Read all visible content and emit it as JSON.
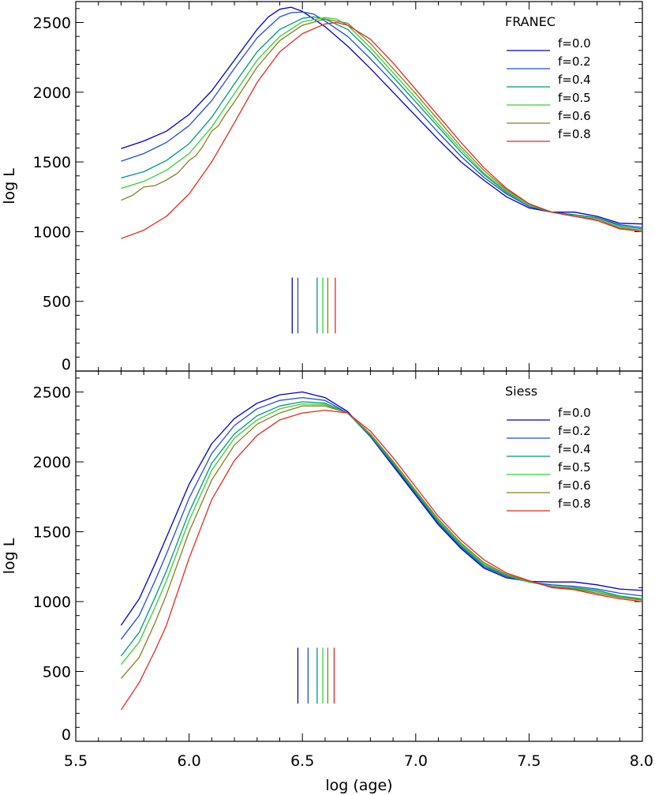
{
  "chart_data": [
    {
      "type": "line",
      "title": "FRANEC",
      "xlabel": "",
      "ylabel": "log L",
      "xlim": [
        5.5,
        8.0
      ],
      "ylim": [
        0,
        2650
      ],
      "xticks": [],
      "yticks": [
        "0",
        "500",
        "1000",
        "1500",
        "2000",
        "2500"
      ],
      "legend": {
        "placement": "top-right"
      },
      "series": [
        {
          "name": "f=0.0",
          "color": "#0000c8",
          "x": [
            5.7,
            5.8,
            5.9,
            6.0,
            6.1,
            6.2,
            6.3,
            6.35,
            6.4,
            6.45,
            6.5,
            6.6,
            6.7,
            6.8,
            6.9,
            7.0,
            7.1,
            7.2,
            7.3,
            7.4,
            7.5,
            7.6,
            7.7,
            7.8,
            7.9,
            8.0
          ],
          "y": [
            1595,
            1650,
            1720,
            1840,
            2010,
            2230,
            2450,
            2540,
            2595,
            2610,
            2580,
            2470,
            2330,
            2170,
            2000,
            1830,
            1660,
            1500,
            1370,
            1250,
            1170,
            1140,
            1140,
            1110,
            1060,
            1055
          ]
        },
        {
          "name": "f=0.2",
          "color": "#1f4fd8",
          "x": [
            5.7,
            5.8,
            5.9,
            6.0,
            6.1,
            6.2,
            6.3,
            6.4,
            6.45,
            6.5,
            6.55,
            6.6,
            6.7,
            6.8,
            6.9,
            7.0,
            7.1,
            7.2,
            7.3,
            7.4,
            7.5,
            7.6,
            7.7,
            7.8,
            7.9,
            8.0
          ],
          "y": [
            1505,
            1560,
            1640,
            1760,
            1940,
            2170,
            2390,
            2540,
            2570,
            2575,
            2560,
            2510,
            2400,
            2240,
            2070,
            1890,
            1710,
            1540,
            1390,
            1270,
            1180,
            1140,
            1120,
            1100,
            1050,
            1030
          ]
        },
        {
          "name": "f=0.4",
          "color": "#00967d",
          "x": [
            5.7,
            5.8,
            5.9,
            6.0,
            6.1,
            6.2,
            6.3,
            6.4,
            6.5,
            6.55,
            6.6,
            6.7,
            6.8,
            6.9,
            7.0,
            7.1,
            7.2,
            7.3,
            7.4,
            7.5,
            7.6,
            7.7,
            7.8,
            7.9,
            8.0
          ],
          "y": [
            1385,
            1430,
            1510,
            1630,
            1820,
            2060,
            2290,
            2450,
            2530,
            2540,
            2525,
            2450,
            2290,
            2110,
            1930,
            1750,
            1570,
            1410,
            1280,
            1190,
            1140,
            1120,
            1100,
            1040,
            1020
          ]
        },
        {
          "name": "f=0.5",
          "color": "#2fd42f",
          "x": [
            5.7,
            5.8,
            5.9,
            6.0,
            6.1,
            6.2,
            6.3,
            6.4,
            6.5,
            6.6,
            6.65,
            6.7,
            6.8,
            6.9,
            7.0,
            7.1,
            7.2,
            7.3,
            7.4,
            7.5,
            7.6,
            7.7,
            7.8,
            7.9,
            8.0
          ],
          "y": [
            1310,
            1360,
            1440,
            1560,
            1750,
            1990,
            2230,
            2400,
            2505,
            2535,
            2525,
            2480,
            2320,
            2140,
            1960,
            1770,
            1590,
            1420,
            1290,
            1190,
            1140,
            1110,
            1090,
            1030,
            1010
          ]
        },
        {
          "name": "f=0.6",
          "color": "#8b7d1c",
          "x": [
            5.7,
            5.75,
            5.8,
            5.85,
            5.9,
            5.95,
            6.0,
            6.03,
            6.06,
            6.1,
            6.13,
            6.16,
            6.2,
            6.3,
            6.4,
            6.5,
            6.6,
            6.7,
            6.8,
            6.9,
            7.0,
            7.1,
            7.2,
            7.3,
            7.4,
            7.5,
            7.6,
            7.7,
            7.8,
            7.9,
            8.0
          ],
          "y": [
            1225,
            1260,
            1320,
            1330,
            1370,
            1420,
            1510,
            1545,
            1610,
            1720,
            1760,
            1840,
            1930,
            2180,
            2370,
            2480,
            2525,
            2495,
            2350,
            2170,
            1990,
            1800,
            1610,
            1440,
            1300,
            1200,
            1140,
            1110,
            1090,
            1025,
            1010
          ]
        },
        {
          "name": "f=0.8",
          "color": "#e8281e",
          "x": [
            5.7,
            5.8,
            5.9,
            6.0,
            6.1,
            6.2,
            6.3,
            6.4,
            6.5,
            6.6,
            6.65,
            6.7,
            6.8,
            6.9,
            7.0,
            7.1,
            7.2,
            7.3,
            7.4,
            7.5,
            7.6,
            7.7,
            7.8,
            7.9,
            8.0
          ],
          "y": [
            950,
            1010,
            1110,
            1270,
            1500,
            1780,
            2070,
            2290,
            2420,
            2490,
            2500,
            2480,
            2380,
            2210,
            2020,
            1830,
            1640,
            1460,
            1310,
            1200,
            1140,
            1110,
            1080,
            1020,
            1000
          ]
        }
      ],
      "markers": [
        {
          "x": 6.455,
          "ymin": 270,
          "ymax": 670,
          "color": "#0000c8"
        },
        {
          "x": 6.48,
          "ymin": 270,
          "ymax": 670,
          "color": "#1f4fd8"
        },
        {
          "x": 6.565,
          "ymin": 270,
          "ymax": 670,
          "color": "#00967d"
        },
        {
          "x": 6.59,
          "ymin": 270,
          "ymax": 670,
          "color": "#2fd42f"
        },
        {
          "x": 6.612,
          "ymin": 270,
          "ymax": 670,
          "color": "#8b7d1c"
        },
        {
          "x": 6.645,
          "ymin": 270,
          "ymax": 670,
          "color": "#e8281e"
        }
      ]
    },
    {
      "type": "line",
      "title": "Siess",
      "xlabel": "log (age)",
      "ylabel": "log L",
      "xlim": [
        5.5,
        8.0
      ],
      "ylim": [
        0,
        2650
      ],
      "xticks": [
        "5.5",
        "6.0",
        "6.5",
        "7.0",
        "7.5",
        "8.0"
      ],
      "yticks": [
        "0",
        "500",
        "1000",
        "1500",
        "2000",
        "2500"
      ],
      "legend": {
        "placement": "top-right"
      },
      "series": [
        {
          "name": "f=0.0",
          "color": "#0000c8",
          "x": [
            5.7,
            5.78,
            5.85,
            5.9,
            6.0,
            6.1,
            6.2,
            6.3,
            6.4,
            6.5,
            6.6,
            6.7,
            6.8,
            6.9,
            7.0,
            7.1,
            7.2,
            7.3,
            7.4,
            7.5,
            7.6,
            7.7,
            7.8,
            7.9,
            8.0
          ],
          "y": [
            830,
            1020,
            1270,
            1460,
            1840,
            2130,
            2310,
            2420,
            2480,
            2500,
            2460,
            2360,
            2180,
            1970,
            1760,
            1550,
            1380,
            1240,
            1170,
            1145,
            1140,
            1140,
            1120,
            1090,
            1080
          ]
        },
        {
          "name": "f=0.2",
          "color": "#1f4fd8",
          "x": [
            5.7,
            5.78,
            5.85,
            5.9,
            6.0,
            6.1,
            6.2,
            6.3,
            6.4,
            6.5,
            6.6,
            6.7,
            6.8,
            6.9,
            7.0,
            7.1,
            7.2,
            7.3,
            7.4,
            7.5,
            7.6,
            7.7,
            7.8,
            7.9,
            8.0
          ],
          "y": [
            730,
            900,
            1150,
            1340,
            1740,
            2060,
            2260,
            2380,
            2440,
            2460,
            2440,
            2350,
            2180,
            1980,
            1770,
            1560,
            1390,
            1250,
            1180,
            1140,
            1120,
            1110,
            1090,
            1060,
            1040
          ]
        },
        {
          "name": "f=0.4",
          "color": "#00967d",
          "x": [
            5.7,
            5.78,
            5.85,
            5.9,
            6.0,
            6.1,
            6.2,
            6.3,
            6.4,
            6.5,
            6.6,
            6.7,
            6.8,
            6.9,
            7.0,
            7.1,
            7.2,
            7.3,
            7.4,
            7.5,
            7.6,
            7.7,
            7.8,
            7.9,
            8.0
          ],
          "y": [
            610,
            780,
            1030,
            1220,
            1640,
            1990,
            2200,
            2330,
            2400,
            2430,
            2420,
            2350,
            2190,
            1990,
            1780,
            1570,
            1400,
            1260,
            1185,
            1140,
            1110,
            1100,
            1080,
            1040,
            1020
          ]
        },
        {
          "name": "f=0.5",
          "color": "#2fd42f",
          "x": [
            5.7,
            5.78,
            5.85,
            5.9,
            6.0,
            6.1,
            6.2,
            6.3,
            6.4,
            6.5,
            6.6,
            6.7,
            6.8,
            6.9,
            7.0,
            7.1,
            7.2,
            7.3,
            7.4,
            7.5,
            7.6,
            7.7,
            7.8,
            7.9,
            8.0
          ],
          "y": [
            550,
            710,
            960,
            1150,
            1580,
            1940,
            2170,
            2300,
            2380,
            2415,
            2410,
            2350,
            2195,
            2000,
            1790,
            1580,
            1410,
            1270,
            1190,
            1140,
            1110,
            1095,
            1070,
            1035,
            1015
          ]
        },
        {
          "name": "f=0.6",
          "color": "#8b7d1c",
          "x": [
            5.7,
            5.78,
            5.85,
            5.9,
            6.0,
            6.1,
            6.2,
            6.3,
            6.4,
            6.5,
            6.6,
            6.7,
            6.8,
            6.9,
            7.0,
            7.1,
            7.2,
            7.3,
            7.4,
            7.5,
            7.6,
            7.7,
            7.8,
            7.9,
            8.0
          ],
          "y": [
            450,
            600,
            850,
            1050,
            1500,
            1870,
            2120,
            2270,
            2350,
            2400,
            2400,
            2350,
            2200,
            2005,
            1795,
            1590,
            1420,
            1280,
            1195,
            1145,
            1105,
            1090,
            1060,
            1030,
            1010
          ]
        },
        {
          "name": "f=0.8",
          "color": "#e8281e",
          "x": [
            5.7,
            5.78,
            5.85,
            5.9,
            6.0,
            6.1,
            6.2,
            6.3,
            6.4,
            6.5,
            6.6,
            6.7,
            6.8,
            6.9,
            7.0,
            7.1,
            7.2,
            7.3,
            7.4,
            7.5,
            7.6,
            7.7,
            7.8,
            7.9,
            8.0
          ],
          "y": [
            225,
            420,
            650,
            830,
            1310,
            1730,
            2010,
            2190,
            2300,
            2350,
            2370,
            2350,
            2220,
            2030,
            1820,
            1610,
            1440,
            1300,
            1205,
            1150,
            1100,
            1085,
            1050,
            1020,
            1000
          ]
        }
      ],
      "markers": [
        {
          "x": 6.48,
          "ymin": 270,
          "ymax": 670,
          "color": "#0000c8"
        },
        {
          "x": 6.525,
          "ymin": 270,
          "ymax": 670,
          "color": "#1f4fd8"
        },
        {
          "x": 6.565,
          "ymin": 270,
          "ymax": 670,
          "color": "#00967d"
        },
        {
          "x": 6.59,
          "ymin": 270,
          "ymax": 670,
          "color": "#2fd42f"
        },
        {
          "x": 6.612,
          "ymin": 270,
          "ymax": 670,
          "color": "#8b7d1c"
        },
        {
          "x": 6.64,
          "ymin": 270,
          "ymax": 670,
          "color": "#e8281e"
        }
      ]
    }
  ]
}
